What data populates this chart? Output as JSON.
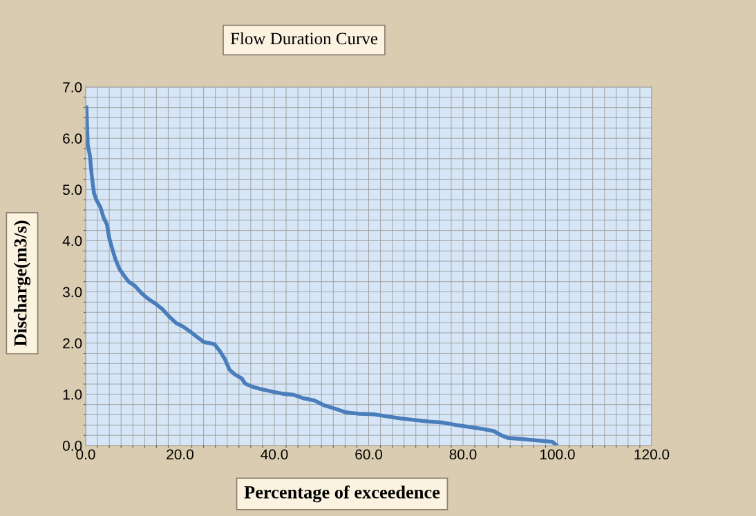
{
  "chart_data": {
    "type": "line",
    "title": "Flow Duration Curve",
    "xlabel": "Percentage of exceedence",
    "ylabel": "Discharge(m3/s)",
    "x": [
      0.15,
      0.44,
      0.88,
      1.3,
      1.76,
      2.3,
      3.1,
      3.8,
      4.5,
      5.0,
      5.6,
      6.3,
      7.2,
      8.2,
      9.1,
      10.4,
      11.9,
      13.3,
      14.8,
      16.3,
      17.7,
      19.2,
      20.7,
      22.1,
      23.6,
      25.1,
      27.3,
      28.4,
      29.5,
      30.5,
      31.6,
      33.1,
      33.8,
      35.3,
      36.8,
      39.7,
      41.9,
      44.1,
      46.3,
      48.5,
      50.7,
      52.9,
      55.1,
      58.0,
      61.0,
      63.9,
      66.8,
      69.7,
      72.7,
      75.6,
      78.5,
      81.5,
      84.4,
      86.6,
      88.1,
      89.5,
      93.2,
      96.8,
      99.0,
      99.9
    ],
    "series": [
      {
        "color": "#4a7ebb",
        "values": [
          6.61,
          5.87,
          5.67,
          5.26,
          4.93,
          4.79,
          4.66,
          4.45,
          4.32,
          4.05,
          3.85,
          3.64,
          3.44,
          3.31,
          3.2,
          3.12,
          2.97,
          2.86,
          2.77,
          2.66,
          2.52,
          2.39,
          2.32,
          2.23,
          2.12,
          2.02,
          1.98,
          1.85,
          1.69,
          1.48,
          1.39,
          1.31,
          1.21,
          1.15,
          1.11,
          1.05,
          1.01,
          0.99,
          0.92,
          0.88,
          0.78,
          0.72,
          0.65,
          0.62,
          0.61,
          0.57,
          0.53,
          0.5,
          0.47,
          0.45,
          0.4,
          0.36,
          0.32,
          0.28,
          0.2,
          0.15,
          0.12,
          0.09,
          0.07,
          0.0
        ]
      }
    ],
    "xlim": [
      0,
      120
    ],
    "ylim": [
      0,
      7
    ],
    "xticks": [
      {
        "value": 0,
        "label": "0.0"
      },
      {
        "value": 20,
        "label": "20.0"
      },
      {
        "value": 40,
        "label": "40.0"
      },
      {
        "value": 60,
        "label": "60.0"
      },
      {
        "value": 80,
        "label": "80.0"
      },
      {
        "value": 100,
        "label": "100.0"
      },
      {
        "value": 120,
        "label": "120.0"
      }
    ],
    "yticks": [
      {
        "value": 0,
        "label": "0.0"
      },
      {
        "value": 1,
        "label": "1.0"
      },
      {
        "value": 2,
        "label": "2.0"
      },
      {
        "value": 3,
        "label": "3.0"
      },
      {
        "value": 4,
        "label": "4.0"
      },
      {
        "value": 5,
        "label": "5.0"
      },
      {
        "value": 6,
        "label": "6.0"
      },
      {
        "value": 7,
        "label": "7.0"
      }
    ],
    "grid": true,
    "legend": false,
    "marker": "none",
    "line_style": "solid"
  }
}
